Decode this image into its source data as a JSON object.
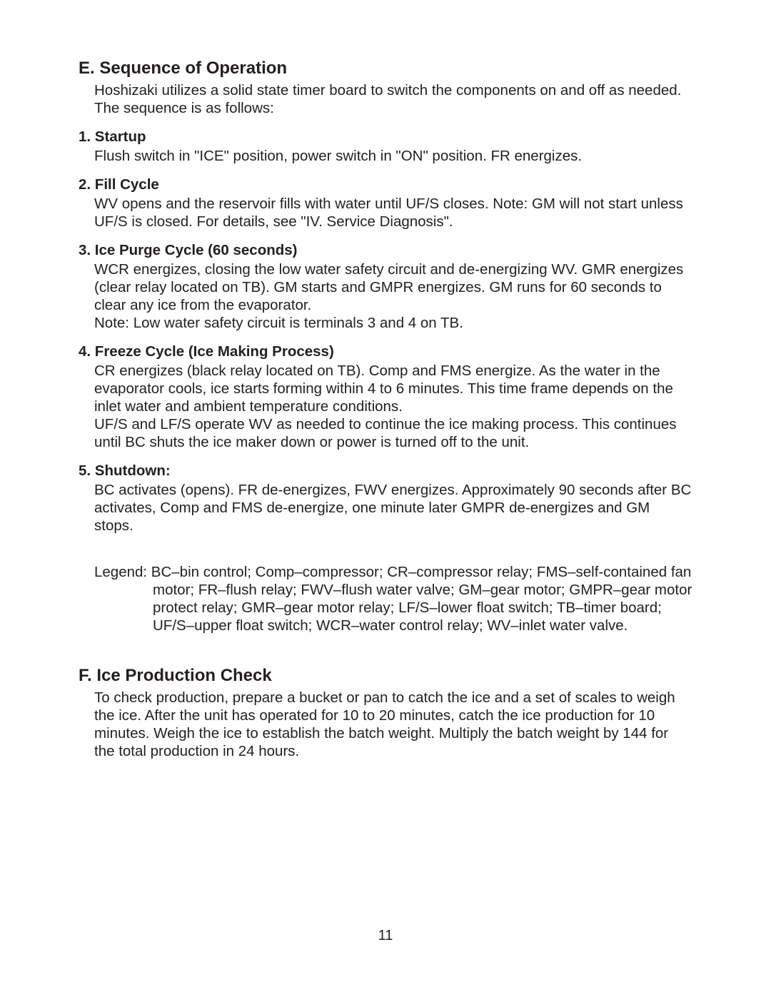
{
  "page": {
    "number": "11",
    "textColor": "#231f20",
    "background": "#ffffff"
  },
  "sectionE": {
    "heading": "E. Sequence of Operation",
    "intro": "Hoshizaki utilizes a solid state timer board to switch the components on and off as needed. The sequence is as follows:",
    "items": [
      {
        "title": "1. Startup",
        "body": "Flush switch in \"ICE\" position, power switch in \"ON\" position. FR energizes."
      },
      {
        "title": "2. Fill Cycle",
        "body": "WV opens and the reservoir fills with water until UF/S closes. Note: GM will not start unless UF/S is closed. For details, see \"IV. Service Diagnosis\"."
      },
      {
        "title": "3. Ice Purge Cycle (60 seconds)",
        "body": "WCR energizes, closing the low water safety circuit and de-energizing WV. GMR energizes (clear relay located on TB). GM starts and GMPR energizes. GM runs for 60 seconds to clear any ice from the evaporator.\nNote: Low water safety circuit is terminals 3 and 4 on TB."
      },
      {
        "title": "4. Freeze Cycle (Ice Making Process)",
        "body": "CR energizes (black relay located on TB). Comp and FMS energize. As the water in the evaporator cools, ice starts forming within 4 to 6 minutes. This time frame depends on the inlet water and ambient temperature conditions.\nUF/S and LF/S operate WV as needed to continue the ice making process. This continues until BC shuts the ice maker down or power is turned off to the unit."
      },
      {
        "title": "5. Shutdown:",
        "body": "BC activates (opens). FR de-energizes, FWV energizes. Approximately 90 seconds after BC activates, Comp and FMS de-energize, one minute later GMPR de-energizes and GM stops."
      }
    ],
    "legend": "Legend: BC–bin control; Comp–compressor; CR–compressor relay; FMS–self-contained fan motor; FR–flush relay; FWV–flush water valve; GM–gear motor; GMPR–gear motor protect relay; GMR–gear motor relay; LF/S–lower float switch; TB–timer board; UF/S–upper float switch; WCR–water control relay; WV–inlet water valve."
  },
  "sectionF": {
    "heading": "F. Ice Production Check",
    "body": "To check production, prepare a bucket or pan to catch the ice and a set of scales to weigh the ice. After the unit has operated for 10 to 20 minutes, catch the ice production for 10 minutes. Weigh the ice to establish the batch weight. Multiply the batch weight by 144 for the total production in 24 hours."
  }
}
